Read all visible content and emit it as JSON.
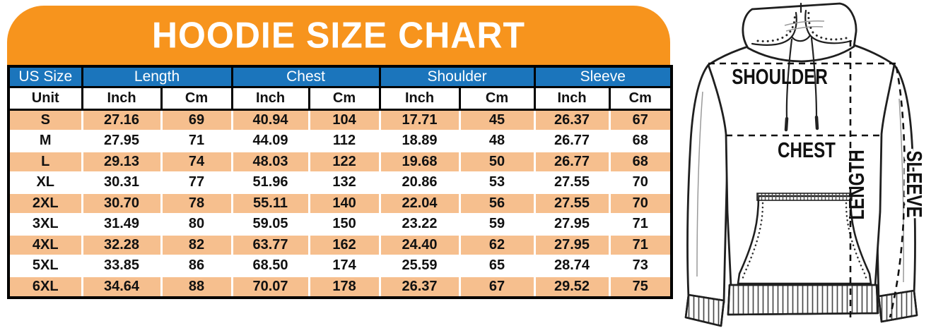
{
  "title": "HOODIE SIZE CHART",
  "colors": {
    "banner_orange": "#f7941d",
    "header_blue": "#1b75bc",
    "row_peach": "#f6bf8e",
    "row_white": "#ffffff",
    "line_dark": "#111111"
  },
  "table": {
    "group_headers": [
      {
        "label": "US Size",
        "span": 1
      },
      {
        "label": "Length",
        "span": 2
      },
      {
        "label": "Chest",
        "span": 2
      },
      {
        "label": "Shoulder",
        "span": 2
      },
      {
        "label": "Sleeve",
        "span": 2
      }
    ],
    "unit_headers": [
      "Unit",
      "Inch",
      "Cm",
      "Inch",
      "Cm",
      "Inch",
      "Cm",
      "Inch",
      "Cm"
    ],
    "rows": [
      [
        "S",
        "27.16",
        "69",
        "40.94",
        "104",
        "17.71",
        "45",
        "26.37",
        "67"
      ],
      [
        "M",
        "27.95",
        "71",
        "44.09",
        "112",
        "18.89",
        "48",
        "26.77",
        "68"
      ],
      [
        "L",
        "29.13",
        "74",
        "48.03",
        "122",
        "19.68",
        "50",
        "26.77",
        "68"
      ],
      [
        "XL",
        "30.31",
        "77",
        "51.96",
        "132",
        "20.86",
        "53",
        "27.55",
        "70"
      ],
      [
        "2XL",
        "30.70",
        "78",
        "55.11",
        "140",
        "22.04",
        "56",
        "27.55",
        "70"
      ],
      [
        "3XL",
        "31.49",
        "80",
        "59.05",
        "150",
        "23.22",
        "59",
        "27.95",
        "71"
      ],
      [
        "4XL",
        "32.28",
        "82",
        "63.77",
        "162",
        "24.40",
        "62",
        "27.95",
        "71"
      ],
      [
        "5XL",
        "33.85",
        "86",
        "68.50",
        "174",
        "25.59",
        "65",
        "28.74",
        "73"
      ],
      [
        "6XL",
        "34.64",
        "88",
        "70.07",
        "178",
        "26.37",
        "67",
        "29.52",
        "75"
      ]
    ]
  },
  "diagram": {
    "labels": {
      "shoulder": "SHOULDER",
      "chest": "CHEST",
      "length": "LENGTH",
      "sleeve": "SLEEVE"
    }
  },
  "chart_data": {
    "type": "table",
    "title": "HOODIE SIZE CHART",
    "columns": [
      "US Size",
      "Length Inch",
      "Length Cm",
      "Chest Inch",
      "Chest Cm",
      "Shoulder Inch",
      "Shoulder Cm",
      "Sleeve Inch",
      "Sleeve Cm"
    ],
    "rows": [
      [
        "S",
        27.16,
        69,
        40.94,
        104,
        17.71,
        45,
        26.37,
        67
      ],
      [
        "M",
        27.95,
        71,
        44.09,
        112,
        18.89,
        48,
        26.77,
        68
      ],
      [
        "L",
        29.13,
        74,
        48.03,
        122,
        19.68,
        50,
        26.77,
        68
      ],
      [
        "XL",
        30.31,
        77,
        51.96,
        132,
        20.86,
        53,
        27.55,
        70
      ],
      [
        "2XL",
        30.7,
        78,
        55.11,
        140,
        22.04,
        56,
        27.55,
        70
      ],
      [
        "3XL",
        31.49,
        80,
        59.05,
        150,
        23.22,
        59,
        27.95,
        71
      ],
      [
        "4XL",
        32.28,
        82,
        63.77,
        162,
        24.4,
        62,
        27.95,
        71
      ],
      [
        "5XL",
        33.85,
        86,
        68.5,
        174,
        25.59,
        65,
        28.74,
        73
      ],
      [
        "6XL",
        34.64,
        88,
        70.07,
        178,
        26.37,
        67,
        29.52,
        75
      ]
    ]
  }
}
